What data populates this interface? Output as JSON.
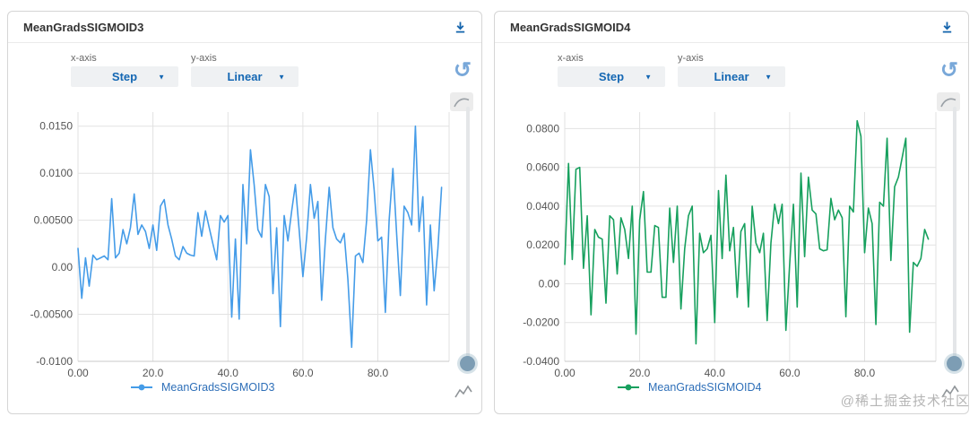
{
  "watermark": "@稀土掘金技术社区",
  "icons": {
    "refresh_glyph": "↺",
    "dropdown_arrow": "▼"
  },
  "panels": [
    {
      "title": "MeanGradsSIGMOID3",
      "controls": {
        "x_axis_label": "x-axis",
        "x_axis_value": "Step",
        "y_axis_label": "y-axis",
        "y_axis_value": "Linear"
      },
      "legend": {
        "label": "MeanGradsSIGMOID3"
      }
    },
    {
      "title": "MeanGradsSIGMOID4",
      "controls": {
        "x_axis_label": "x-axis",
        "x_axis_value": "Step",
        "y_axis_label": "y-axis",
        "y_axis_value": "Linear"
      },
      "legend": {
        "label": "MeanGradsSIGMOID4"
      }
    }
  ],
  "chart_data": [
    {
      "type": "line",
      "title": "MeanGradsSIGMOID3",
      "x_start": 0,
      "x_step": 1,
      "xlim": [
        0,
        99
      ],
      "ylim": [
        -0.01,
        0.0165
      ],
      "xticks": [
        0,
        20,
        40,
        60,
        80
      ],
      "xtick_labels": [
        "0.00",
        "20.0",
        "40.0",
        "60.0",
        "80.0"
      ],
      "yticks": [
        0.015,
        0.01,
        0.005,
        0,
        -0.005,
        -0.01
      ],
      "ytick_labels": [
        "0.0150",
        "0.0100",
        "0.00500",
        "0.00",
        "-0.00500",
        "-0.0100"
      ],
      "grid": true,
      "legend_position": "bottom",
      "series": [
        {
          "name": "MeanGradsSIGMOID3",
          "color": "#459ce8",
          "values": [
            0.002,
            -0.0033,
            0.001,
            -0.002,
            0.0013,
            0.0008,
            0.001,
            0.0012,
            0.0008,
            0.0073,
            0.001,
            0.0015,
            0.004,
            0.0025,
            0.0042,
            0.0078,
            0.0035,
            0.0045,
            0.0038,
            0.002,
            0.0045,
            0.0018,
            0.0065,
            0.0072,
            0.0045,
            0.003,
            0.0012,
            0.0008,
            0.0022,
            0.0015,
            0.0013,
            0.0012,
            0.0058,
            0.0033,
            0.006,
            0.0042,
            0.0025,
            0.0008,
            0.0055,
            0.0048,
            0.0055,
            -0.0053,
            0.003,
            -0.0055,
            0.0088,
            0.0025,
            0.0125,
            0.0088,
            0.004,
            0.0032,
            0.0088,
            0.0075,
            -0.0028,
            0.0042,
            -0.0063,
            0.0055,
            0.0028,
            0.006,
            0.0088,
            0.004,
            -0.001,
            0.0032,
            0.0088,
            0.0052,
            0.007,
            -0.0035,
            0.003,
            0.0085,
            0.0042,
            0.003,
            0.0026,
            0.0036,
            -0.0013,
            -0.0085,
            0.0012,
            0.0015,
            0.0005,
            0.005,
            0.0125,
            0.0082,
            0.0028,
            0.0032,
            -0.0048,
            0.005,
            0.0105,
            0.0035,
            -0.003,
            0.0065,
            0.0058,
            0.0045,
            0.015,
            0.0038,
            0.0075,
            -0.004,
            0.0045,
            -0.0025,
            0.002,
            0.0085
          ]
        }
      ]
    },
    {
      "type": "line",
      "title": "MeanGradsSIGMOID4",
      "x_start": 0,
      "x_step": 1,
      "xlim": [
        0,
        99
      ],
      "ylim": [
        -0.04,
        0.0885
      ],
      "xticks": [
        0,
        20,
        40,
        60,
        80
      ],
      "xtick_labels": [
        "0.00",
        "20.0",
        "40.0",
        "60.0",
        "80.0"
      ],
      "yticks": [
        0.08,
        0.06,
        0.04,
        0.02,
        0,
        -0.02,
        -0.04
      ],
      "ytick_labels": [
        "0.0800",
        "0.0600",
        "0.0400",
        "0.0200",
        "0.00",
        "-0.0200",
        "-0.0400"
      ],
      "grid": true,
      "legend_position": "bottom",
      "series": [
        {
          "name": "MeanGradsSIGMOID4",
          "color": "#17a05e",
          "values": [
            0.01,
            0.062,
            0.0125,
            0.059,
            0.06,
            0.008,
            0.035,
            -0.016,
            0.028,
            0.024,
            0.023,
            -0.01,
            0.035,
            0.033,
            0.005,
            0.034,
            0.028,
            0.013,
            0.04,
            -0.026,
            0.033,
            0.0475,
            0.006,
            0.006,
            0.03,
            0.029,
            -0.007,
            -0.007,
            0.039,
            0.011,
            0.04,
            -0.013,
            0.018,
            0.035,
            0.04,
            -0.031,
            0.026,
            0.016,
            0.018,
            0.025,
            -0.02,
            0.048,
            0.013,
            0.056,
            0.017,
            0.029,
            -0.007,
            0.027,
            0.031,
            -0.012,
            0.04,
            0.021,
            0.016,
            0.026,
            -0.019,
            0.021,
            0.041,
            0.031,
            0.041,
            -0.024,
            0.01,
            0.041,
            -0.012,
            0.057,
            0.014,
            0.055,
            0.038,
            0.036,
            0.018,
            0.017,
            0.0175,
            0.044,
            0.033,
            0.038,
            0.034,
            -0.017,
            0.04,
            0.037,
            0.084,
            0.076,
            0.016,
            0.039,
            0.031,
            -0.021,
            0.042,
            0.04,
            0.075,
            0.012,
            0.05,
            0.055,
            0.065,
            0.075,
            -0.025,
            0.011,
            0.009,
            0.013,
            0.028,
            0.023
          ]
        }
      ]
    }
  ]
}
